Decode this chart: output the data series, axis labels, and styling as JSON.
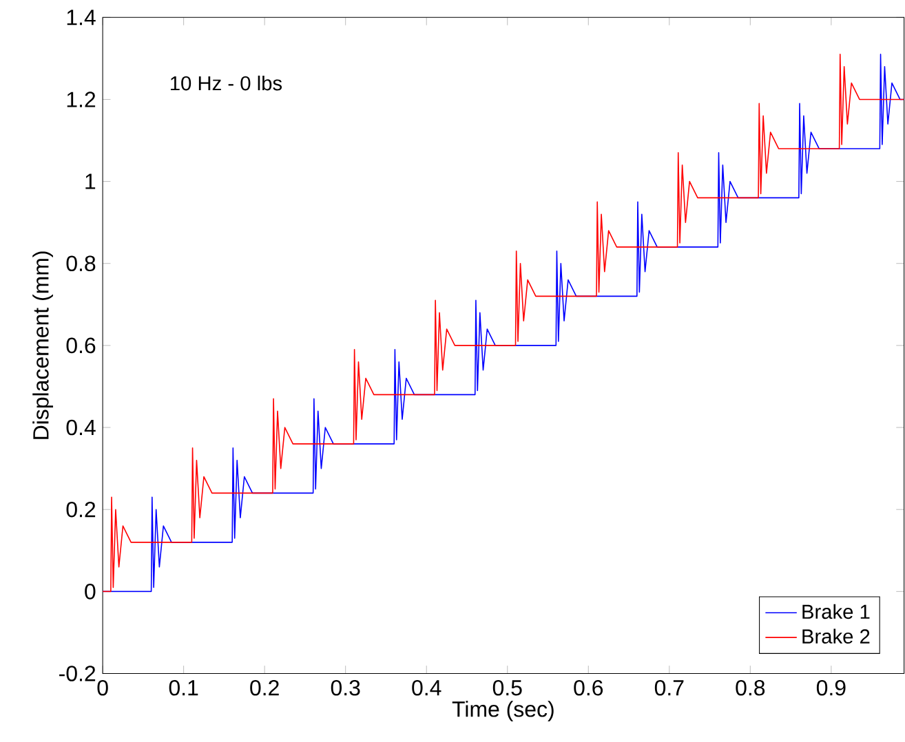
{
  "chart_data": {
    "type": "line",
    "xlabel": "Time (sec)",
    "ylabel": "Displacement (mm)",
    "annotations": [
      "10 Hz - 0 lbs"
    ],
    "xlim": [
      0,
      0.99
    ],
    "ylim": [
      -0.2,
      1.4
    ],
    "xticks": [
      0,
      0.1,
      0.2,
      0.3,
      0.4,
      0.5,
      0.6,
      0.7,
      0.8,
      0.9
    ],
    "yticks": [
      -0.2,
      0,
      0.2,
      0.4,
      0.6,
      0.8,
      1,
      1.2,
      1.4
    ],
    "legend": "bottom right",
    "grid": false,
    "marker": "none",
    "line_style": "solid",
    "series": [
      {
        "name": "Brake 1",
        "color": "#0000ff",
        "x": [
          0,
          0.06,
          0.061,
          0.063,
          0.066,
          0.07,
          0.075,
          0.085,
          0.16,
          0.161,
          0.163,
          0.166,
          0.17,
          0.175,
          0.185,
          0.26,
          0.261,
          0.263,
          0.266,
          0.27,
          0.275,
          0.285,
          0.36,
          0.361,
          0.363,
          0.366,
          0.37,
          0.375,
          0.385,
          0.46,
          0.461,
          0.463,
          0.466,
          0.47,
          0.475,
          0.485,
          0.56,
          0.561,
          0.563,
          0.566,
          0.57,
          0.575,
          0.585,
          0.66,
          0.661,
          0.663,
          0.666,
          0.67,
          0.675,
          0.685,
          0.76,
          0.761,
          0.763,
          0.766,
          0.77,
          0.775,
          0.785,
          0.86,
          0.861,
          0.863,
          0.866,
          0.87,
          0.875,
          0.885,
          0.96,
          0.961,
          0.963,
          0.966,
          0.97,
          0.975,
          0.985,
          0.99
        ],
        "values": [
          0,
          0,
          0.23,
          0.01,
          0.2,
          0.06,
          0.16,
          0.12,
          0.12,
          0.35,
          0.13,
          0.32,
          0.18,
          0.28,
          0.24,
          0.24,
          0.47,
          0.25,
          0.44,
          0.3,
          0.4,
          0.36,
          0.36,
          0.59,
          0.37,
          0.56,
          0.42,
          0.52,
          0.48,
          0.48,
          0.71,
          0.49,
          0.68,
          0.54,
          0.64,
          0.6,
          0.6,
          0.83,
          0.61,
          0.8,
          0.66,
          0.76,
          0.72,
          0.72,
          0.95,
          0.73,
          0.92,
          0.78,
          0.88,
          0.84,
          0.84,
          1.07,
          0.85,
          1.04,
          0.9,
          1.0,
          0.96,
          0.96,
          1.19,
          0.97,
          1.16,
          1.02,
          1.12,
          1.08,
          1.08,
          1.31,
          1.09,
          1.28,
          1.14,
          1.24,
          1.2,
          1.2
        ]
      },
      {
        "name": "Brake 2",
        "color": "#ff0000",
        "x": [
          0,
          0.01,
          0.011,
          0.013,
          0.016,
          0.02,
          0.025,
          0.035,
          0.11,
          0.111,
          0.113,
          0.116,
          0.12,
          0.125,
          0.135,
          0.21,
          0.211,
          0.213,
          0.216,
          0.22,
          0.225,
          0.235,
          0.31,
          0.311,
          0.313,
          0.316,
          0.32,
          0.325,
          0.335,
          0.41,
          0.411,
          0.413,
          0.416,
          0.42,
          0.425,
          0.435,
          0.51,
          0.511,
          0.513,
          0.516,
          0.52,
          0.525,
          0.535,
          0.61,
          0.611,
          0.613,
          0.616,
          0.62,
          0.625,
          0.635,
          0.71,
          0.711,
          0.713,
          0.716,
          0.72,
          0.725,
          0.735,
          0.81,
          0.811,
          0.813,
          0.816,
          0.82,
          0.825,
          0.835,
          0.91,
          0.911,
          0.913,
          0.916,
          0.92,
          0.925,
          0.935,
          0.99
        ],
        "values": [
          0,
          0,
          0.23,
          0.01,
          0.2,
          0.06,
          0.16,
          0.12,
          0.12,
          0.35,
          0.13,
          0.32,
          0.18,
          0.28,
          0.24,
          0.24,
          0.47,
          0.25,
          0.44,
          0.3,
          0.4,
          0.36,
          0.36,
          0.59,
          0.37,
          0.56,
          0.42,
          0.52,
          0.48,
          0.48,
          0.71,
          0.49,
          0.68,
          0.54,
          0.64,
          0.6,
          0.6,
          0.83,
          0.61,
          0.8,
          0.66,
          0.76,
          0.72,
          0.72,
          0.95,
          0.73,
          0.92,
          0.78,
          0.88,
          0.84,
          0.84,
          1.07,
          0.85,
          1.04,
          0.9,
          1.0,
          0.96,
          0.96,
          1.19,
          0.97,
          1.16,
          1.02,
          1.12,
          1.08,
          1.08,
          1.31,
          1.09,
          1.28,
          1.14,
          1.24,
          1.2,
          1.2
        ]
      }
    ]
  }
}
